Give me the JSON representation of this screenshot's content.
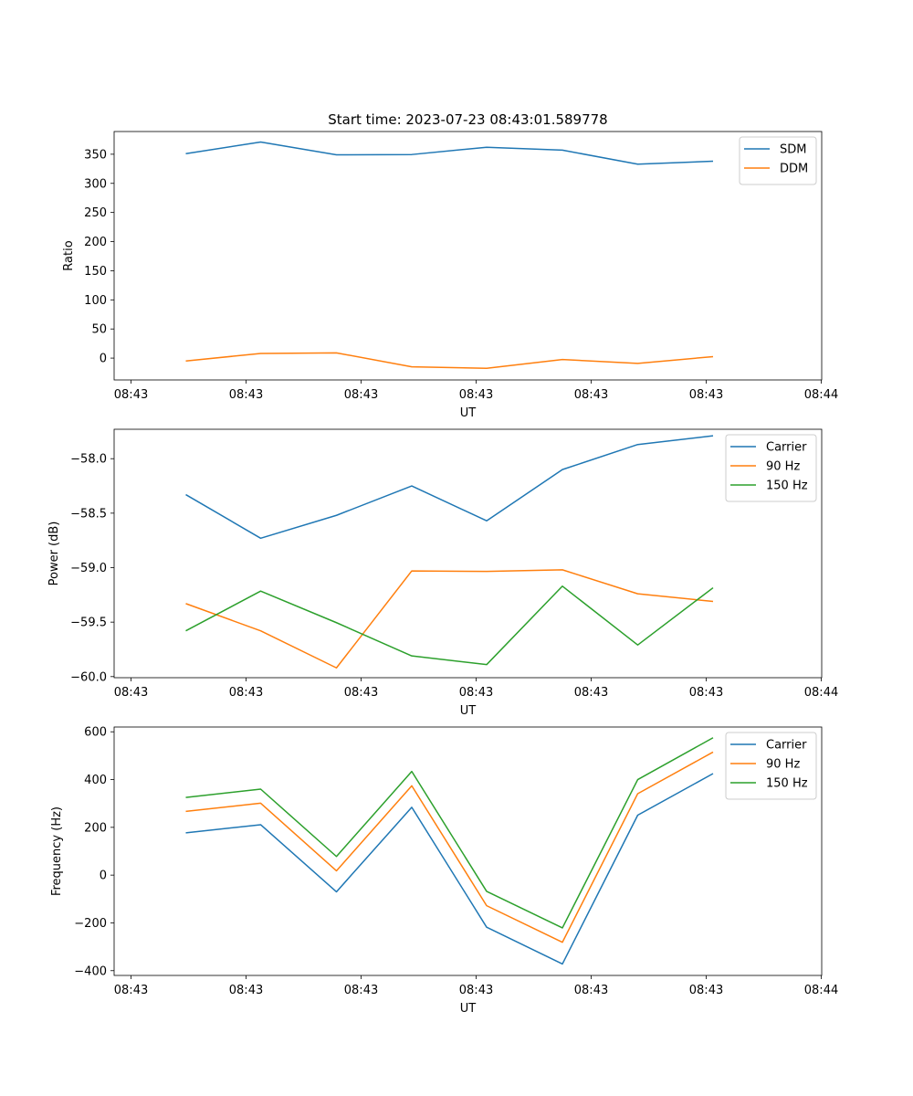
{
  "figure": {
    "title": "Start time: 2023-07-23 08:43:01.589778"
  },
  "chart_data": [
    {
      "type": "line",
      "title": "Start time: 2023-07-23 08:43:01.589778",
      "xlabel": "UT",
      "ylabel": "Ratio",
      "x_tick_labels": [
        "08:43",
        "08:43",
        "08:43",
        "08:43",
        "08:43",
        "08:43",
        "08:44"
      ],
      "y_ticks": [
        0,
        50,
        100,
        150,
        200,
        250,
        300,
        350
      ],
      "y_tick_labels": [
        "0",
        "50",
        "100",
        "150",
        "200",
        "250",
        "300",
        "350"
      ],
      "ylim": [
        -37.5,
        389
      ],
      "legend_position": "top-right",
      "series": [
        {
          "name": "SDM",
          "color": "#1f77b4",
          "values": [
            351,
            371,
            349,
            349.5,
            362,
            357,
            333,
            338
          ]
        },
        {
          "name": "DDM",
          "color": "#ff7f0e",
          "values": [
            -5,
            8,
            9,
            -15,
            -17.5,
            -2.5,
            -9,
            2.5
          ]
        }
      ]
    },
    {
      "type": "line",
      "title": "",
      "xlabel": "UT",
      "ylabel": "Power (dB)",
      "x_tick_labels": [
        "08:43",
        "08:43",
        "08:43",
        "08:43",
        "08:43",
        "08:43",
        "08:44"
      ],
      "y_ticks": [
        -60.0,
        -59.5,
        -59.0,
        -58.5,
        -58.0
      ],
      "y_tick_labels": [
        "−60.0",
        "−59.5",
        "−59.0",
        "−58.5",
        "−58.0"
      ],
      "ylim": [
        -60.01,
        -57.73
      ],
      "legend_position": "top-right",
      "series": [
        {
          "name": "Carrier",
          "color": "#1f77b4",
          "values": [
            -58.33,
            -58.73,
            -58.52,
            -58.25,
            -58.57,
            -58.1,
            -57.87,
            -57.79
          ]
        },
        {
          "name": "90 Hz",
          "color": "#ff7f0e",
          "values": [
            -59.33,
            -59.58,
            -59.92,
            -59.03,
            -59.035,
            -59.02,
            -59.24,
            -59.31
          ]
        },
        {
          "name": "150 Hz",
          "color": "#2ca02c",
          "values": [
            -59.58,
            -59.215,
            -59.505,
            -59.81,
            -59.89,
            -59.17,
            -59.71,
            -59.185
          ]
        }
      ]
    },
    {
      "type": "line",
      "title": "",
      "xlabel": "UT",
      "ylabel": "Frequency (Hz)",
      "x_tick_labels": [
        "08:43",
        "08:43",
        "08:43",
        "08:43",
        "08:43",
        "08:43",
        "08:44"
      ],
      "y_ticks": [
        -400,
        -200,
        0,
        200,
        400,
        600
      ],
      "y_tick_labels": [
        "−400",
        "−200",
        "0",
        "200",
        "400",
        "600"
      ],
      "ylim": [
        -420,
        620
      ],
      "legend_position": "top-right",
      "series": [
        {
          "name": "Carrier",
          "color": "#1f77b4",
          "values": [
            177,
            211,
            -70,
            284,
            -218,
            -372,
            251,
            425
          ]
        },
        {
          "name": "90 Hz",
          "color": "#ff7f0e",
          "values": [
            267,
            301,
            18,
            374,
            -128,
            -281,
            341,
            515
          ]
        },
        {
          "name": "150 Hz",
          "color": "#2ca02c",
          "values": [
            325,
            360,
            78,
            434,
            -68,
            -221,
            400,
            575
          ]
        }
      ]
    }
  ]
}
